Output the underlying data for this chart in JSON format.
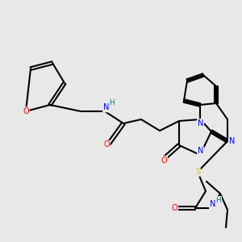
{
  "bg_color": "#e8e8e8",
  "bond_color": "#000000",
  "bond_width": 1.5,
  "atom_colors": {
    "O": "#ff0000",
    "N": "#0000ff",
    "S": "#cccc00",
    "H": "#008080",
    "C": "#000000"
  }
}
